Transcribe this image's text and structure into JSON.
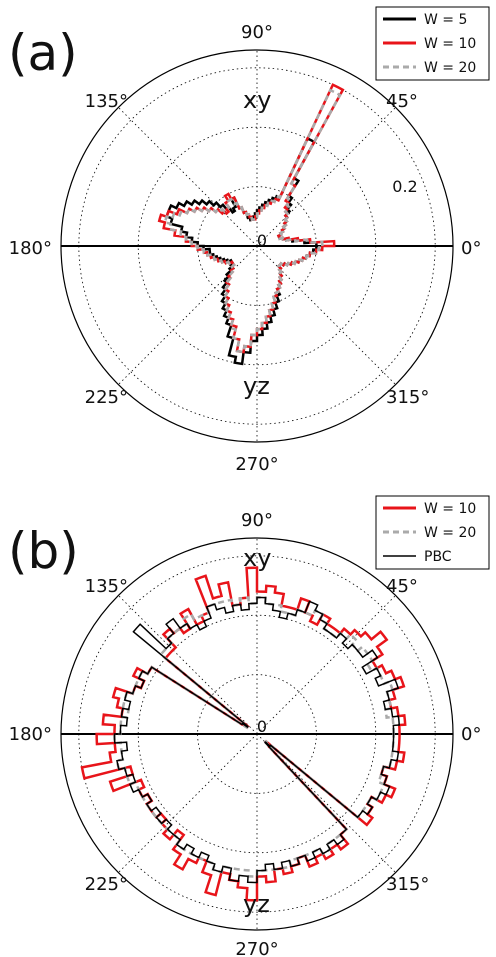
{
  "chart_data": [
    {
      "type": "polar-step",
      "panel_label": "(a)",
      "angle_ticks": [
        "0°",
        "45°",
        "90°",
        "135°",
        "180°",
        "225°",
        "270°",
        "315°"
      ],
      "radial_ticks": [
        "0",
        "0.2"
      ],
      "annotations": [
        "xy",
        "yz"
      ],
      "rlim": [
        0,
        0.33
      ],
      "series": [
        {
          "name": "W = 5",
          "color": "#000000",
          "style": "solid",
          "r": [
            0.1,
            0.08,
            0.06,
            0.05,
            0.045,
            0.04,
            0.04,
            0.045,
            0.05,
            0.055,
            0.06,
            0.065,
            0.07,
            0.08,
            0.09,
            0.1,
            0.13,
            0.2,
            0.09,
            0.085,
            0.08,
            0.075,
            0.07,
            0.065,
            0.06,
            0.055,
            0.05,
            0.045,
            0.045,
            0.05,
            0.06,
            0.07,
            0.09,
            0.075,
            0.07,
            0.08,
            0.09,
            0.1,
            0.11,
            0.12,
            0.13,
            0.14,
            0.15,
            0.16,
            0.16,
            0.15,
            0.13,
            0.12,
            0.11,
            0.1,
            0.09,
            0.08,
            0.08,
            0.075,
            0.07,
            0.065,
            0.06,
            0.055,
            0.05,
            0.05,
            0.055,
            0.06,
            0.07,
            0.08,
            0.09,
            0.1,
            0.11,
            0.12,
            0.13,
            0.14,
            0.16,
            0.19,
            0.2,
            0.18,
            0.16,
            0.15,
            0.14,
            0.13,
            0.12,
            0.11,
            0.1,
            0.09,
            0.08,
            0.075,
            0.07,
            0.065,
            0.06,
            0.055,
            0.05,
            0.05,
            0.055,
            0.06,
            0.065,
            0.07,
            0.075,
            0.08,
            0.085,
            0.09,
            0.095,
            0.1
          ]
        },
        {
          "name": "W = 10",
          "color": "#e8141a",
          "style": "solid",
          "r": [
            0.13,
            0.09,
            0.07,
            0.055,
            0.045,
            0.04,
            0.04,
            0.045,
            0.05,
            0.055,
            0.06,
            0.065,
            0.07,
            0.075,
            0.08,
            0.09,
            0.12,
            0.3,
            0.085,
            0.08,
            0.075,
            0.07,
            0.065,
            0.06,
            0.055,
            0.05,
            0.045,
            0.045,
            0.05,
            0.055,
            0.06,
            0.07,
            0.09,
            0.1,
            0.09,
            0.08,
            0.075,
            0.08,
            0.09,
            0.1,
            0.11,
            0.12,
            0.13,
            0.145,
            0.16,
            0.17,
            0.16,
            0.14,
            0.12,
            0.11,
            0.1,
            0.09,
            0.085,
            0.08,
            0.075,
            0.07,
            0.065,
            0.06,
            0.055,
            0.05,
            0.05,
            0.055,
            0.06,
            0.07,
            0.08,
            0.09,
            0.1,
            0.11,
            0.12,
            0.13,
            0.14,
            0.16,
            0.18,
            0.17,
            0.15,
            0.14,
            0.13,
            0.12,
            0.11,
            0.1,
            0.09,
            0.085,
            0.08,
            0.075,
            0.07,
            0.065,
            0.06,
            0.055,
            0.05,
            0.05,
            0.055,
            0.06,
            0.065,
            0.07,
            0.075,
            0.08,
            0.085,
            0.09,
            0.1,
            0.11
          ]
        },
        {
          "name": "W = 20",
          "color": "#aaaaaa",
          "style": "dashed",
          "r": [
            0.11,
            0.085,
            0.065,
            0.05,
            0.045,
            0.04,
            0.04,
            0.045,
            0.05,
            0.055,
            0.06,
            0.065,
            0.07,
            0.075,
            0.085,
            0.095,
            0.12,
            0.29,
            0.09,
            0.08,
            0.075,
            0.07,
            0.065,
            0.06,
            0.055,
            0.05,
            0.045,
            0.045,
            0.05,
            0.055,
            0.06,
            0.07,
            0.08,
            0.09,
            0.085,
            0.08,
            0.08,
            0.085,
            0.09,
            0.1,
            0.11,
            0.12,
            0.13,
            0.14,
            0.15,
            0.16,
            0.15,
            0.13,
            0.12,
            0.11,
            0.1,
            0.09,
            0.085,
            0.08,
            0.075,
            0.07,
            0.065,
            0.06,
            0.055,
            0.05,
            0.05,
            0.055,
            0.06,
            0.07,
            0.08,
            0.09,
            0.1,
            0.11,
            0.12,
            0.13,
            0.145,
            0.16,
            0.18,
            0.17,
            0.15,
            0.14,
            0.13,
            0.12,
            0.11,
            0.1,
            0.09,
            0.085,
            0.08,
            0.075,
            0.07,
            0.065,
            0.06,
            0.055,
            0.05,
            0.05,
            0.055,
            0.06,
            0.065,
            0.07,
            0.075,
            0.08,
            0.085,
            0.09,
            0.1,
            0.105
          ]
        }
      ]
    },
    {
      "type": "polar-step",
      "panel_label": "(b)",
      "angle_ticks": [
        "0°",
        "45°",
        "90°",
        "135°",
        "180°",
        "225°",
        "270°",
        "315°"
      ],
      "radial_ticks": [
        "0"
      ],
      "annotations": [
        "xy",
        "yz"
      ],
      "rlim": [
        0,
        0.33
      ],
      "series": [
        {
          "name": "W = 10",
          "color": "#e8141a",
          "style": "solid",
          "r": [
            0.24,
            0.25,
            0.24,
            0.23,
            0.24,
            0.26,
            0.25,
            0.24,
            0.23,
            0.25,
            0.27,
            0.25,
            0.24,
            0.23,
            0.22,
            0.22,
            0.23,
            0.21,
            0.22,
            0.24,
            0.22,
            0.22,
            0.24,
            0.25,
            0.24,
            0.28,
            0.23,
            0.22,
            0.26,
            0.24,
            0.28,
            0.22,
            0.21,
            0.24,
            0.21,
            0.22,
            0.23,
            0.2,
            0.2,
            0.02,
            0.03,
            0.21,
            0.23,
            0.21,
            0.22,
            0.25,
            0.24,
            0.23,
            0.26,
            0.24,
            0.27,
            0.24,
            0.25,
            0.3,
            0.22,
            0.26,
            0.21,
            0.22,
            0.21,
            0.22,
            0.22,
            0.21,
            0.22,
            0.23,
            0.21,
            0.24,
            0.26,
            0.24,
            0.23,
            0.25,
            0.28,
            0.24,
            0.25,
            0.26,
            0.28,
            0.24,
            0.25,
            0.23,
            0.24,
            0.23,
            0.22,
            0.24,
            0.23,
            0.24,
            0.23,
            0.24,
            0.22,
            0.03,
            0.02,
            0.24,
            0.23,
            0.22,
            0.24,
            0.25,
            0.23,
            0.22,
            0.24,
            0.25,
            0.24,
            0.24
          ]
        },
        {
          "name": "W = 20",
          "color": "#aaaaaa",
          "style": "dashed",
          "r": [
            0.23,
            0.23,
            0.22,
            0.23,
            0.23,
            0.24,
            0.23,
            0.23,
            0.22,
            0.23,
            0.23,
            0.22,
            0.23,
            0.22,
            0.21,
            0.21,
            0.22,
            0.23,
            0.22,
            0.22,
            0.21,
            0.21,
            0.22,
            0.22,
            0.23,
            0.22,
            0.23,
            0.22,
            0.23,
            0.23,
            0.23,
            0.22,
            0.22,
            0.23,
            0.22,
            0.22,
            0.22,
            0.21,
            0.21,
            0.03,
            0.02,
            0.21,
            0.22,
            0.22,
            0.22,
            0.23,
            0.23,
            0.22,
            0.23,
            0.23,
            0.24,
            0.23,
            0.23,
            0.24,
            0.23,
            0.23,
            0.22,
            0.22,
            0.22,
            0.22,
            0.22,
            0.22,
            0.22,
            0.22,
            0.22,
            0.23,
            0.23,
            0.23,
            0.23,
            0.23,
            0.24,
            0.23,
            0.23,
            0.23,
            0.24,
            0.23,
            0.23,
            0.23,
            0.23,
            0.22,
            0.22,
            0.22,
            0.22,
            0.23,
            0.22,
            0.22,
            0.22,
            0.03,
            0.02,
            0.22,
            0.22,
            0.22,
            0.23,
            0.23,
            0.22,
            0.22,
            0.23,
            0.23,
            0.23,
            0.23
          ]
        },
        {
          "name": "PBC",
          "color": "#000000",
          "style": "solid",
          "r": [
            0.23,
            0.24,
            0.23,
            0.22,
            0.23,
            0.25,
            0.22,
            0.23,
            0.21,
            0.24,
            0.22,
            0.22,
            0.21,
            0.22,
            0.21,
            0.21,
            0.22,
            0.23,
            0.24,
            0.22,
            0.21,
            0.2,
            0.21,
            0.22,
            0.23,
            0.22,
            0.21,
            0.22,
            0.21,
            0.22,
            0.23,
            0.21,
            0.2,
            0.21,
            0.22,
            0.24,
            0.22,
            0.21,
            0.27,
            0.02,
            0.03,
            0.21,
            0.22,
            0.21,
            0.22,
            0.23,
            0.22,
            0.23,
            0.22,
            0.23,
            0.24,
            0.22,
            0.23,
            0.24,
            0.23,
            0.22,
            0.23,
            0.22,
            0.21,
            0.22,
            0.21,
            0.22,
            0.21,
            0.22,
            0.22,
            0.23,
            0.22,
            0.23,
            0.22,
            0.23,
            0.24,
            0.23,
            0.25,
            0.24,
            0.25,
            0.23,
            0.22,
            0.23,
            0.22,
            0.23,
            0.22,
            0.23,
            0.22,
            0.23,
            0.22,
            0.23,
            0.22,
            0.02,
            0.03,
            0.22,
            0.23,
            0.22,
            0.23,
            0.24,
            0.23,
            0.22,
            0.23,
            0.24,
            0.23,
            0.23
          ]
        }
      ]
    }
  ]
}
